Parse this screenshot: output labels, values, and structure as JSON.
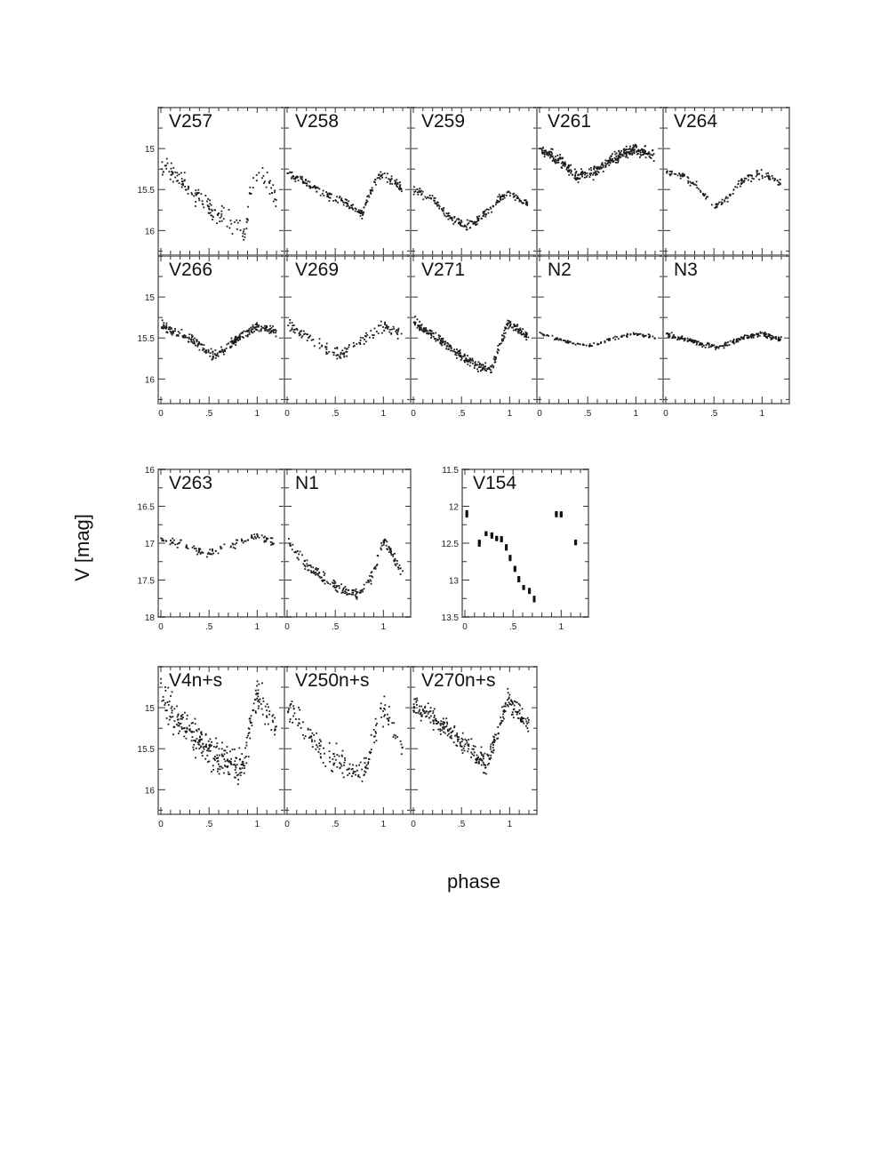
{
  "figure": {
    "ylabel": "V [mag]",
    "xlabel": "phase"
  },
  "chart_data": [
    {
      "type": "scatter",
      "group": "row1",
      "xlim": [
        0,
        1.2
      ],
      "ylim": [
        16.3,
        14.5
      ],
      "x_ticks": [
        0,
        0.5,
        1
      ],
      "x_tick_labels": [
        "0",
        ".5",
        "1"
      ],
      "y_ticks": [
        15,
        15.5,
        16
      ],
      "y_tick_labels": [
        "15",
        "15.5",
        "16"
      ],
      "panels": [
        {
          "label": "V257",
          "curve": [
            [
              0.0,
              15.3
            ],
            [
              0.05,
              15.22
            ],
            [
              0.2,
              15.38
            ],
            [
              0.4,
              15.6
            ],
            [
              0.6,
              15.82
            ],
            [
              0.8,
              15.95
            ],
            [
              0.88,
              16.05
            ],
            [
              0.92,
              15.6
            ],
            [
              1.0,
              15.25
            ],
            [
              1.1,
              15.4
            ],
            [
              1.2,
              15.6
            ]
          ],
          "scatter": 0.12,
          "n": 160
        },
        {
          "label": "V258",
          "curve": [
            [
              0.0,
              15.3
            ],
            [
              0.2,
              15.42
            ],
            [
              0.4,
              15.56
            ],
            [
              0.6,
              15.66
            ],
            [
              0.78,
              15.8
            ],
            [
              0.88,
              15.5
            ],
            [
              0.98,
              15.3
            ],
            [
              1.1,
              15.4
            ],
            [
              1.2,
              15.5
            ]
          ],
          "scatter": 0.05,
          "n": 200
        },
        {
          "label": "V259",
          "curve": [
            [
              0.0,
              15.5
            ],
            [
              0.2,
              15.62
            ],
            [
              0.4,
              15.85
            ],
            [
              0.55,
              15.95
            ],
            [
              0.7,
              15.85
            ],
            [
              0.9,
              15.6
            ],
            [
              1.0,
              15.55
            ],
            [
              1.2,
              15.68
            ]
          ],
          "scatter": 0.05,
          "n": 200
        },
        {
          "label": "V261",
          "curve": [
            [
              0.0,
              15.0
            ],
            [
              0.15,
              15.1
            ],
            [
              0.4,
              15.35
            ],
            [
              0.55,
              15.3
            ],
            [
              0.8,
              15.1
            ],
            [
              1.0,
              15.0
            ],
            [
              1.2,
              15.1
            ]
          ],
          "scatter": 0.07,
          "n": 360
        },
        {
          "label": "V264",
          "curve": [
            [
              0.0,
              15.27
            ],
            [
              0.2,
              15.35
            ],
            [
              0.35,
              15.5
            ],
            [
              0.5,
              15.7
            ],
            [
              0.65,
              15.6
            ],
            [
              0.8,
              15.38
            ],
            [
              1.0,
              15.3
            ],
            [
              1.2,
              15.42
            ]
          ],
          "scatter": 0.05,
          "n": 150
        }
      ]
    },
    {
      "type": "scatter",
      "group": "row2",
      "xlim": [
        0,
        1.2
      ],
      "ylim": [
        16.3,
        14.5
      ],
      "x_ticks": [
        0,
        0.5,
        1
      ],
      "x_tick_labels": [
        "0",
        ".5",
        "1"
      ],
      "y_ticks": [
        15,
        15.5,
        16
      ],
      "y_tick_labels": [
        "15",
        "15.5",
        "16"
      ],
      "panels": [
        {
          "label": "V266",
          "curve": [
            [
              0.0,
              15.35
            ],
            [
              0.3,
              15.5
            ],
            [
              0.55,
              15.72
            ],
            [
              0.75,
              15.55
            ],
            [
              1.0,
              15.35
            ],
            [
              1.2,
              15.42
            ]
          ],
          "scatter": 0.06,
          "n": 260
        },
        {
          "label": "V269",
          "curve": [
            [
              0.0,
              15.35
            ],
            [
              0.3,
              15.55
            ],
            [
              0.55,
              15.72
            ],
            [
              0.8,
              15.5
            ],
            [
              1.0,
              15.35
            ],
            [
              1.2,
              15.45
            ]
          ],
          "scatter": 0.07,
          "n": 140
        },
        {
          "label": "V271",
          "curve": [
            [
              0.0,
              15.3
            ],
            [
              0.3,
              15.55
            ],
            [
              0.6,
              15.8
            ],
            [
              0.8,
              15.9
            ],
            [
              0.9,
              15.6
            ],
            [
              0.98,
              15.3
            ],
            [
              1.2,
              15.5
            ]
          ],
          "scatter": 0.06,
          "n": 300
        },
        {
          "label": "N2",
          "curve": [
            [
              0.0,
              15.45
            ],
            [
              0.3,
              15.55
            ],
            [
              0.5,
              15.6
            ],
            [
              0.8,
              15.5
            ],
            [
              1.0,
              15.45
            ],
            [
              1.2,
              15.5
            ]
          ],
          "scatter": 0.02,
          "n": 110
        },
        {
          "label": "N3",
          "curve": [
            [
              0.0,
              15.45
            ],
            [
              0.3,
              15.55
            ],
            [
              0.55,
              15.62
            ],
            [
              0.8,
              15.5
            ],
            [
              1.0,
              15.45
            ],
            [
              1.2,
              15.52
            ]
          ],
          "scatter": 0.03,
          "n": 220
        }
      ]
    },
    {
      "type": "scatter",
      "group": "row3-left",
      "xlim": [
        0,
        1.2
      ],
      "ylim": [
        18,
        16
      ],
      "x_ticks": [
        0,
        0.5,
        1
      ],
      "x_tick_labels": [
        "0",
        ".5",
        "1"
      ],
      "y_ticks": [
        16,
        16.5,
        17,
        17.5,
        18
      ],
      "y_tick_labels": [
        "16",
        "16.5",
        "17",
        "17.5",
        "18"
      ],
      "panels": [
        {
          "label": "V263",
          "curve": [
            [
              0.0,
              16.95
            ],
            [
              0.3,
              17.05
            ],
            [
              0.5,
              17.15
            ],
            [
              0.7,
              17.05
            ],
            [
              1.0,
              16.9
            ],
            [
              1.2,
              17.0
            ]
          ],
          "scatter": 0.05,
          "n": 110
        },
        {
          "label": "N1",
          "curve": [
            [
              0.0,
              16.95
            ],
            [
              0.2,
              17.3
            ],
            [
              0.5,
              17.6
            ],
            [
              0.75,
              17.7
            ],
            [
              0.9,
              17.4
            ],
            [
              1.0,
              16.95
            ],
            [
              1.2,
              17.4
            ]
          ],
          "scatter": 0.08,
          "n": 200
        }
      ]
    },
    {
      "type": "scatter",
      "group": "row3-right",
      "xlim": [
        0,
        1.2
      ],
      "ylim": [
        13.5,
        11.5
      ],
      "x_ticks": [
        0,
        0.5,
        1
      ],
      "x_tick_labels": [
        "0",
        ".5",
        "1"
      ],
      "y_ticks": [
        11.5,
        12,
        12.5,
        13,
        13.5
      ],
      "y_tick_labels": [
        "11.5",
        "12",
        "12.5",
        "13",
        "13.5"
      ],
      "panels": [
        {
          "label": "V154",
          "points": [
            [
              0.02,
              12.1
            ],
            [
              0.15,
              12.5
            ],
            [
              0.22,
              12.38
            ],
            [
              0.28,
              12.4
            ],
            [
              0.33,
              12.42
            ],
            [
              0.38,
              12.45
            ],
            [
              0.43,
              12.55
            ],
            [
              0.47,
              12.7
            ],
            [
              0.52,
              12.85
            ],
            [
              0.56,
              13.0
            ],
            [
              0.61,
              13.1
            ],
            [
              0.67,
              13.15
            ],
            [
              0.72,
              13.25
            ],
            [
              0.95,
              12.1
            ],
            [
              1.0,
              12.1
            ],
            [
              1.15,
              12.5
            ]
          ],
          "scatter": 0.03,
          "n": 0
        }
      ]
    },
    {
      "type": "scatter",
      "group": "row4",
      "xlim": [
        0,
        1.2
      ],
      "ylim": [
        16.3,
        14.5
      ],
      "x_ticks": [
        0,
        0.5,
        1
      ],
      "x_tick_labels": [
        "0",
        ".5",
        "1"
      ],
      "y_ticks": [
        15,
        15.5,
        16
      ],
      "y_tick_labels": [
        "15",
        "15.5",
        "16"
      ],
      "panels": [
        {
          "label": "V4n+s",
          "curve": [
            [
              0.0,
              14.8
            ],
            [
              0.15,
              15.1
            ],
            [
              0.4,
              15.4
            ],
            [
              0.6,
              15.6
            ],
            [
              0.85,
              15.75
            ],
            [
              0.95,
              15.1
            ],
            [
              1.0,
              14.85
            ],
            [
              1.2,
              15.25
            ]
          ],
          "scatter": 0.2,
          "n": 320
        },
        {
          "label": "V250n+s",
          "curve": [
            [
              0.0,
              14.95
            ],
            [
              0.2,
              15.3
            ],
            [
              0.4,
              15.55
            ],
            [
              0.6,
              15.7
            ],
            [
              0.75,
              15.85
            ],
            [
              0.85,
              15.6
            ],
            [
              1.0,
              15.0
            ],
            [
              1.2,
              15.5
            ]
          ],
          "scatter": 0.18,
          "n": 180
        },
        {
          "label": "V270n+s",
          "curve": [
            [
              0.0,
              14.95
            ],
            [
              0.2,
              15.15
            ],
            [
              0.4,
              15.3
            ],
            [
              0.6,
              15.5
            ],
            [
              0.75,
              15.7
            ],
            [
              0.85,
              15.4
            ],
            [
              0.98,
              14.9
            ],
            [
              1.2,
              15.2
            ]
          ],
          "scatter": 0.12,
          "n": 320
        }
      ]
    }
  ]
}
